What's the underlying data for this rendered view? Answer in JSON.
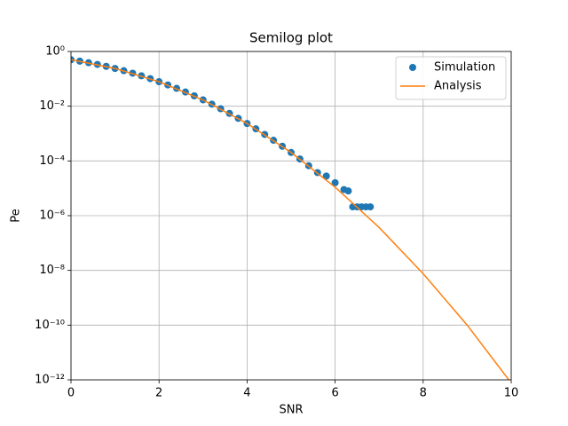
{
  "chart_data": {
    "type": "semilog",
    "title": "Semilog plot",
    "xlabel": "SNR",
    "ylabel": "Pe",
    "xlim": [
      0,
      10
    ],
    "xticks": [
      0,
      2,
      4,
      6,
      8,
      10
    ],
    "ylim": [
      1e-12,
      1
    ],
    "log_y": true,
    "yticks": [
      {
        "value": 1e-12,
        "label": "10⁻¹²"
      },
      {
        "value": 1e-10,
        "label": "10⁻¹⁰"
      },
      {
        "value": 1e-08,
        "label": "10⁻⁸"
      },
      {
        "value": 1e-06,
        "label": "10⁻⁶"
      },
      {
        "value": 0.0001,
        "label": "10⁻⁴"
      },
      {
        "value": 0.01,
        "label": "10⁻²"
      },
      {
        "value": 1,
        "label": "10⁰"
      }
    ],
    "grid": true,
    "legend": "upper right",
    "series": [
      {
        "name": "Simulation",
        "color": "#1f77b4",
        "marker": "circle",
        "x": [
          0,
          0.2,
          0.4,
          0.6,
          0.8,
          1.0,
          1.2,
          1.4,
          1.6,
          1.8,
          2.0,
          2.2,
          2.4,
          2.6,
          2.8,
          3.0,
          3.2,
          3.4,
          3.6,
          3.8,
          4.0,
          4.2,
          4.4,
          4.6,
          4.8,
          5.0,
          5.2,
          5.4,
          5.6,
          5.8,
          6.0,
          6.2,
          6.3,
          6.4,
          6.5,
          6.6,
          6.7,
          6.8
        ],
        "values": [
          0.5,
          0.444,
          0.389,
          0.336,
          0.286,
          0.24,
          0.198,
          0.161,
          0.129,
          0.102,
          0.0787,
          0.0599,
          0.0449,
          0.033,
          0.0239,
          0.017,
          0.0119,
          0.0081,
          0.00545,
          0.0036,
          0.00234,
          0.00149,
          0.00093,
          0.00057,
          0.000345,
          0.000204,
          0.000118,
          6.7e-05,
          3.75e-05,
          2.8e-05,
          1.6e-05,
          9e-06,
          8e-06,
          2.1e-06,
          2.1e-06,
          2.1e-06,
          2.1e-06,
          2.1e-06
        ]
      },
      {
        "name": "Analysis",
        "color": "#ff7f0e",
        "marker": "line",
        "x": [
          0,
          1,
          2,
          3,
          4,
          5,
          6,
          7,
          8,
          9,
          10
        ],
        "values": [
          0.5,
          0.2398,
          0.0786,
          0.0169,
          0.00234,
          0.000204,
          1.1e-05,
          3.7e-07,
          7.6e-09,
          1e-10,
          7.7e-13
        ]
      }
    ]
  }
}
